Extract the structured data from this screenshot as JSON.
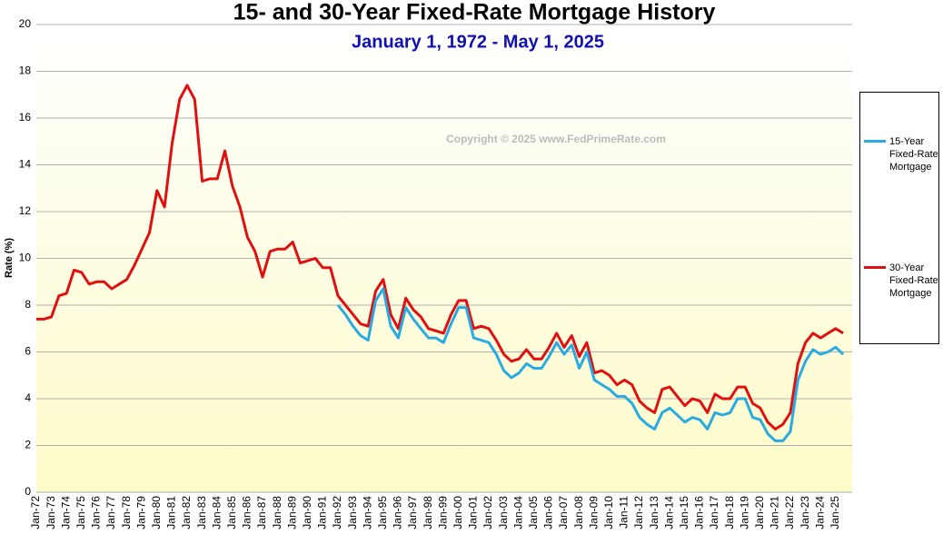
{
  "chart_data": {
    "type": "line",
    "title": "15- and 30-Year Fixed-Rate Mortgage History",
    "subtitle": "January 1, 1972  -  May 1, 2025",
    "y_label": "Rate (%)",
    "annotation": "Copyright © 2025 www.FedPrimeRate.com",
    "categories": [
      "Jan-72",
      null,
      "Jan-73",
      null,
      "Jan-74",
      null,
      "Jan-75",
      null,
      "Jan-76",
      null,
      "Jan-77",
      null,
      "Jan-78",
      null,
      "Jan-79",
      null,
      "Jan-80",
      null,
      "Jan-81",
      null,
      "Jan-82",
      null,
      "Jan-83",
      null,
      "Jan-84",
      null,
      "Jan-85",
      null,
      "Jan-86",
      null,
      "Jan-87",
      null,
      "Jan-88",
      null,
      "Jan-89",
      null,
      "Jan-90",
      null,
      "Jan-91",
      null,
      "Jan-92",
      null,
      "Jan-93",
      null,
      "Jan-94",
      null,
      "Jan-95",
      null,
      "Jan-96",
      null,
      "Jan-97",
      null,
      "Jan-98",
      null,
      "Jan-99",
      null,
      "Jan-00",
      null,
      "Jan-01",
      null,
      "Jan-02",
      null,
      "Jan-03",
      null,
      "Jan-04",
      null,
      "Jan-05",
      null,
      "Jan-06",
      null,
      "Jan-07",
      null,
      "Jan-08",
      null,
      "Jan-09",
      null,
      "Jan-10",
      null,
      "Jan-11",
      null,
      "Jan-12",
      null,
      "Jan-13",
      null,
      "Jan-14",
      null,
      "Jan-15",
      null,
      "Jan-16",
      null,
      "Jan-17",
      null,
      "Jan-18",
      null,
      "Jan-19",
      null,
      "Jan-20",
      null,
      "Jan-21",
      null,
      "Jan-22",
      null,
      "Jan-23",
      null,
      "Jan-24",
      null,
      "Jan-25",
      null
    ],
    "series": [
      {
        "name": "15-Year Fixed-Rate Mortgage",
        "color": "#29abe2",
        "line_color2": "#1a3fbf",
        "values": [
          null,
          null,
          null,
          null,
          null,
          null,
          null,
          null,
          null,
          null,
          null,
          null,
          null,
          null,
          null,
          null,
          null,
          null,
          null,
          null,
          null,
          null,
          null,
          null,
          null,
          null,
          null,
          null,
          null,
          null,
          null,
          null,
          null,
          null,
          null,
          null,
          null,
          null,
          null,
          null,
          8.0,
          7.6,
          7.1,
          6.7,
          6.5,
          8.2,
          8.7,
          7.1,
          6.6,
          7.9,
          7.4,
          7.0,
          6.6,
          6.6,
          6.4,
          7.2,
          7.9,
          7.9,
          6.6,
          6.5,
          6.4,
          5.9,
          5.2,
          4.9,
          5.1,
          5.5,
          5.3,
          5.3,
          5.8,
          6.4,
          5.9,
          6.3,
          5.3,
          6.0,
          4.8,
          4.6,
          4.4,
          4.1,
          4.1,
          3.8,
          3.2,
          2.9,
          2.7,
          3.4,
          3.6,
          3.3,
          3.0,
          3.2,
          3.1,
          2.7,
          3.4,
          3.3,
          3.4,
          4.0,
          4.0,
          3.2,
          3.1,
          2.5,
          2.2,
          2.2,
          2.6,
          4.8,
          5.6,
          6.1,
          5.9,
          6.0,
          6.2,
          5.9
        ]
      },
      {
        "name": "30-Year Fixed-Rate Mortgage",
        "color": "#e01010",
        "values": [
          7.4,
          7.4,
          7.5,
          8.4,
          8.5,
          9.5,
          9.4,
          8.9,
          9.0,
          9.0,
          8.7,
          8.9,
          9.1,
          9.7,
          10.4,
          11.1,
          12.9,
          12.2,
          14.9,
          16.8,
          17.4,
          16.8,
          13.3,
          13.4,
          13.4,
          14.6,
          13.1,
          12.2,
          10.9,
          10.3,
          9.2,
          10.3,
          10.4,
          10.4,
          10.7,
          9.8,
          9.9,
          10.0,
          9.6,
          9.6,
          8.4,
          8.0,
          7.6,
          7.2,
          7.1,
          8.6,
          9.1,
          7.6,
          7.0,
          8.3,
          7.8,
          7.5,
          7.0,
          6.9,
          6.8,
          7.6,
          8.2,
          8.2,
          7.0,
          7.1,
          7.0,
          6.5,
          5.9,
          5.6,
          5.7,
          6.1,
          5.7,
          5.7,
          6.2,
          6.8,
          6.2,
          6.7,
          5.8,
          6.4,
          5.1,
          5.2,
          5.0,
          4.6,
          4.8,
          4.6,
          3.9,
          3.6,
          3.4,
          4.4,
          4.5,
          4.1,
          3.7,
          4.0,
          3.9,
          3.4,
          4.2,
          4.0,
          4.0,
          4.5,
          4.5,
          3.8,
          3.6,
          3.0,
          2.7,
          2.9,
          3.4,
          5.5,
          6.4,
          6.8,
          6.6,
          6.8,
          7.0,
          6.8
        ]
      }
    ],
    "ylim": [
      0,
      20
    ],
    "yticks": [
      0,
      2,
      4,
      6,
      8,
      10,
      12,
      14,
      16,
      18,
      20
    ],
    "grid": true
  }
}
